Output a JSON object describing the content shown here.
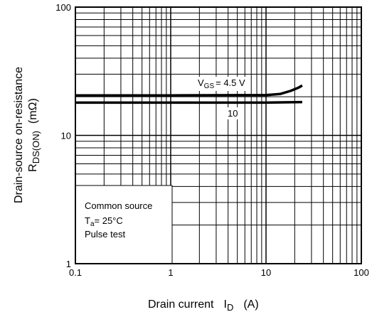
{
  "chart_data": {
    "type": "line",
    "x_scale": "log",
    "y_scale": "log",
    "xlim": [
      0.1,
      100
    ],
    "ylim": [
      1,
      100
    ],
    "grid": true,
    "x_ticks": [
      "0.1",
      "1",
      "10",
      "100"
    ],
    "y_ticks": [
      "1",
      "10",
      "100"
    ],
    "xlabel": {
      "main": "Drain current",
      "symbol": "I",
      "sub": "D",
      "unit": "(A)"
    },
    "ylabel": {
      "line1": "Drain-source on-resistance",
      "symbol": "R",
      "sub": "DS(ON)",
      "unit": "(mΩ)"
    },
    "series": [
      {
        "label_prefix": "V",
        "label_sub": "GS",
        "label_value": "= 4.5 V",
        "points": [
          [
            0.1,
            20.5
          ],
          [
            1,
            20.5
          ],
          [
            10,
            20.6
          ],
          [
            14,
            21.0
          ],
          [
            18,
            22.2
          ],
          [
            22,
            23.6
          ],
          [
            24,
            24.5
          ]
        ]
      },
      {
        "label_value": "10",
        "points": [
          [
            0.1,
            18.0
          ],
          [
            1,
            18.0
          ],
          [
            10,
            18.0
          ],
          [
            24,
            18.2
          ]
        ]
      }
    ],
    "conditions": {
      "line1": "Common source",
      "line2_symbol": "T",
      "line2_sub": "a",
      "line2_rest": "= 25°C",
      "line3": "Pulse test"
    }
  }
}
